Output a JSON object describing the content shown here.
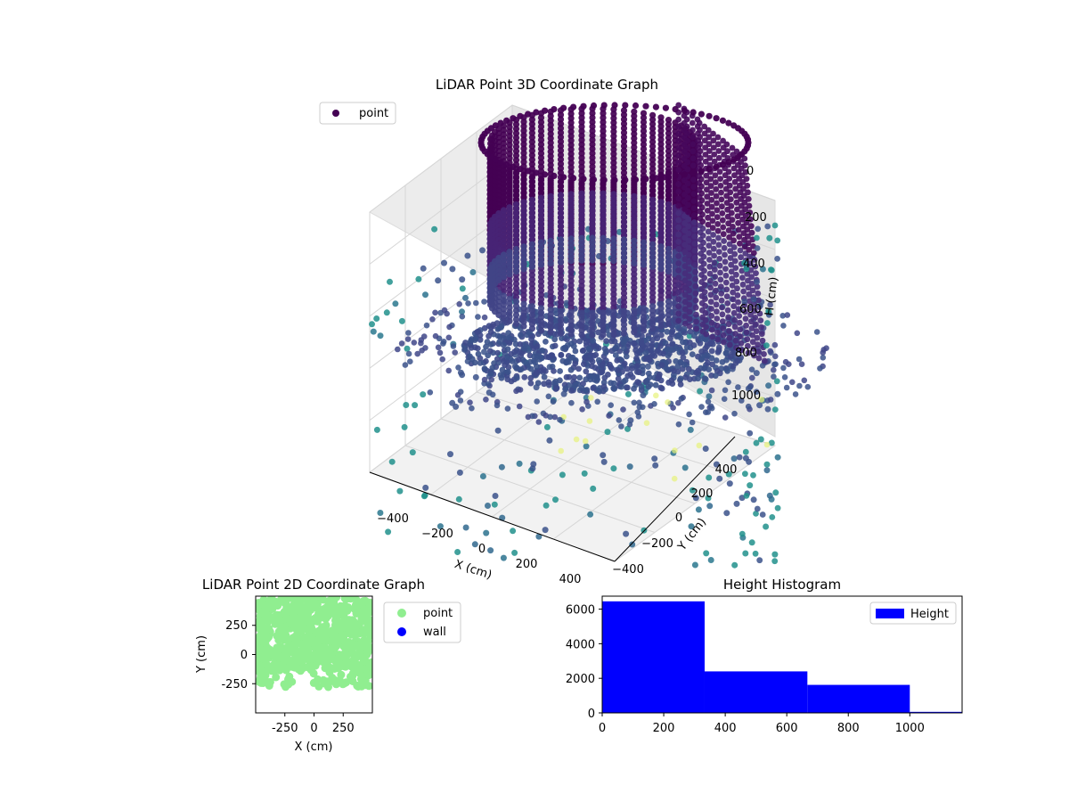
{
  "chart_data": [
    {
      "type": "scatter",
      "projection": "3d",
      "title": "LiDAR Point 3D Coordinate Graph",
      "xlabel": "X (cm)",
      "ylabel": "Y (cm)",
      "zlabel": "H (cm)",
      "x_ticks": [
        "−400",
        "−200",
        "0",
        "200",
        "400"
      ],
      "y_ticks": [
        "−400",
        "−200",
        "0",
        "200",
        "400"
      ],
      "z_ticks": [
        "0",
        "200",
        "400",
        "600",
        "800",
        "1000"
      ],
      "z_inverted": true,
      "legend": [
        "point"
      ],
      "legend_position": "top-left",
      "colormap": "viridis",
      "colors": {
        "dark": "#440154",
        "mid": "#3b528b",
        "teal": "#21918c",
        "green": "#5ec962",
        "yellow": "#fde725"
      },
      "structure": {
        "cylinder_radius_cm": 230,
        "cylinder_height_range_cm": [
          0,
          700
        ],
        "cylinder_color": "#440154",
        "floor_color": "#3b528b"
      }
    },
    {
      "type": "scatter",
      "title": "LiDAR Point 2D Coordinate Graph",
      "xlabel": "X (cm)",
      "ylabel": "Y (cm)",
      "x_ticks": [
        -250,
        0,
        250
      ],
      "y_ticks": [
        -250,
        0,
        250
      ],
      "xlim": [
        -500,
        500
      ],
      "ylim": [
        -500,
        500
      ],
      "series": [
        {
          "name": "point",
          "color": "#90ee90"
        },
        {
          "name": "wall",
          "color": "#0000ff"
        }
      ],
      "legend_position": "outside-right"
    },
    {
      "type": "bar",
      "subtype": "histogram",
      "title": "Height Histogram",
      "series": [
        {
          "name": "Height",
          "color": "#0000ff"
        }
      ],
      "bin_edges": [
        0,
        333,
        667,
        1000,
        1170
      ],
      "values": [
        6450,
        2400,
        1620,
        60
      ],
      "xlim": [
        0,
        1170
      ],
      "ylim": [
        0,
        6750
      ],
      "x_ticks": [
        0,
        200,
        400,
        600,
        800,
        1000
      ],
      "y_ticks": [
        0,
        2000,
        4000,
        6000
      ],
      "legend_position": "top-right"
    }
  ]
}
